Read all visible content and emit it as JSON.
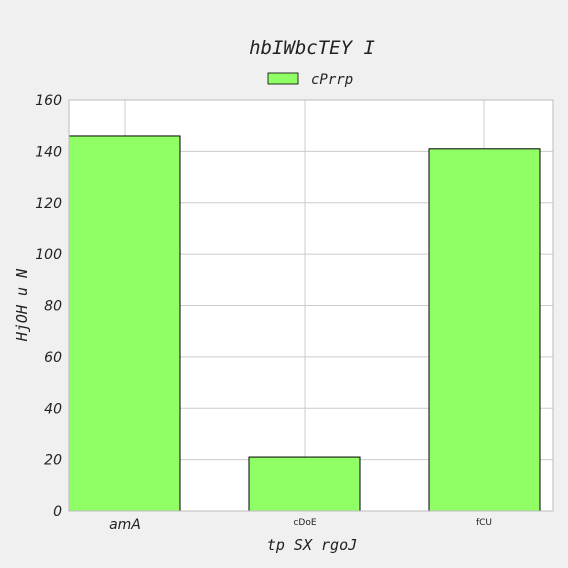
{
  "chart_data": {
    "type": "bar",
    "title": "hbIWbcTEY I",
    "xlabel": "tp SX rgoJ",
    "ylabel": "HjOH u N",
    "categories": [
      "amA",
      "cDoE",
      "fCU"
    ],
    "series": [
      {
        "name": "cPrrp",
        "values": [
          146,
          21,
          141
        ]
      }
    ],
    "ylim": [
      0,
      160
    ],
    "yticks": [
      0,
      20,
      40,
      60,
      80,
      100,
      120,
      140,
      160
    ],
    "grid": true,
    "legend": "top-center",
    "colors": {
      "bar": "#90ff66",
      "edge": "#000000",
      "grid": "#cccccc",
      "plot_bg": "#ffffff",
      "page_bg": "#f0f0f0"
    }
  }
}
